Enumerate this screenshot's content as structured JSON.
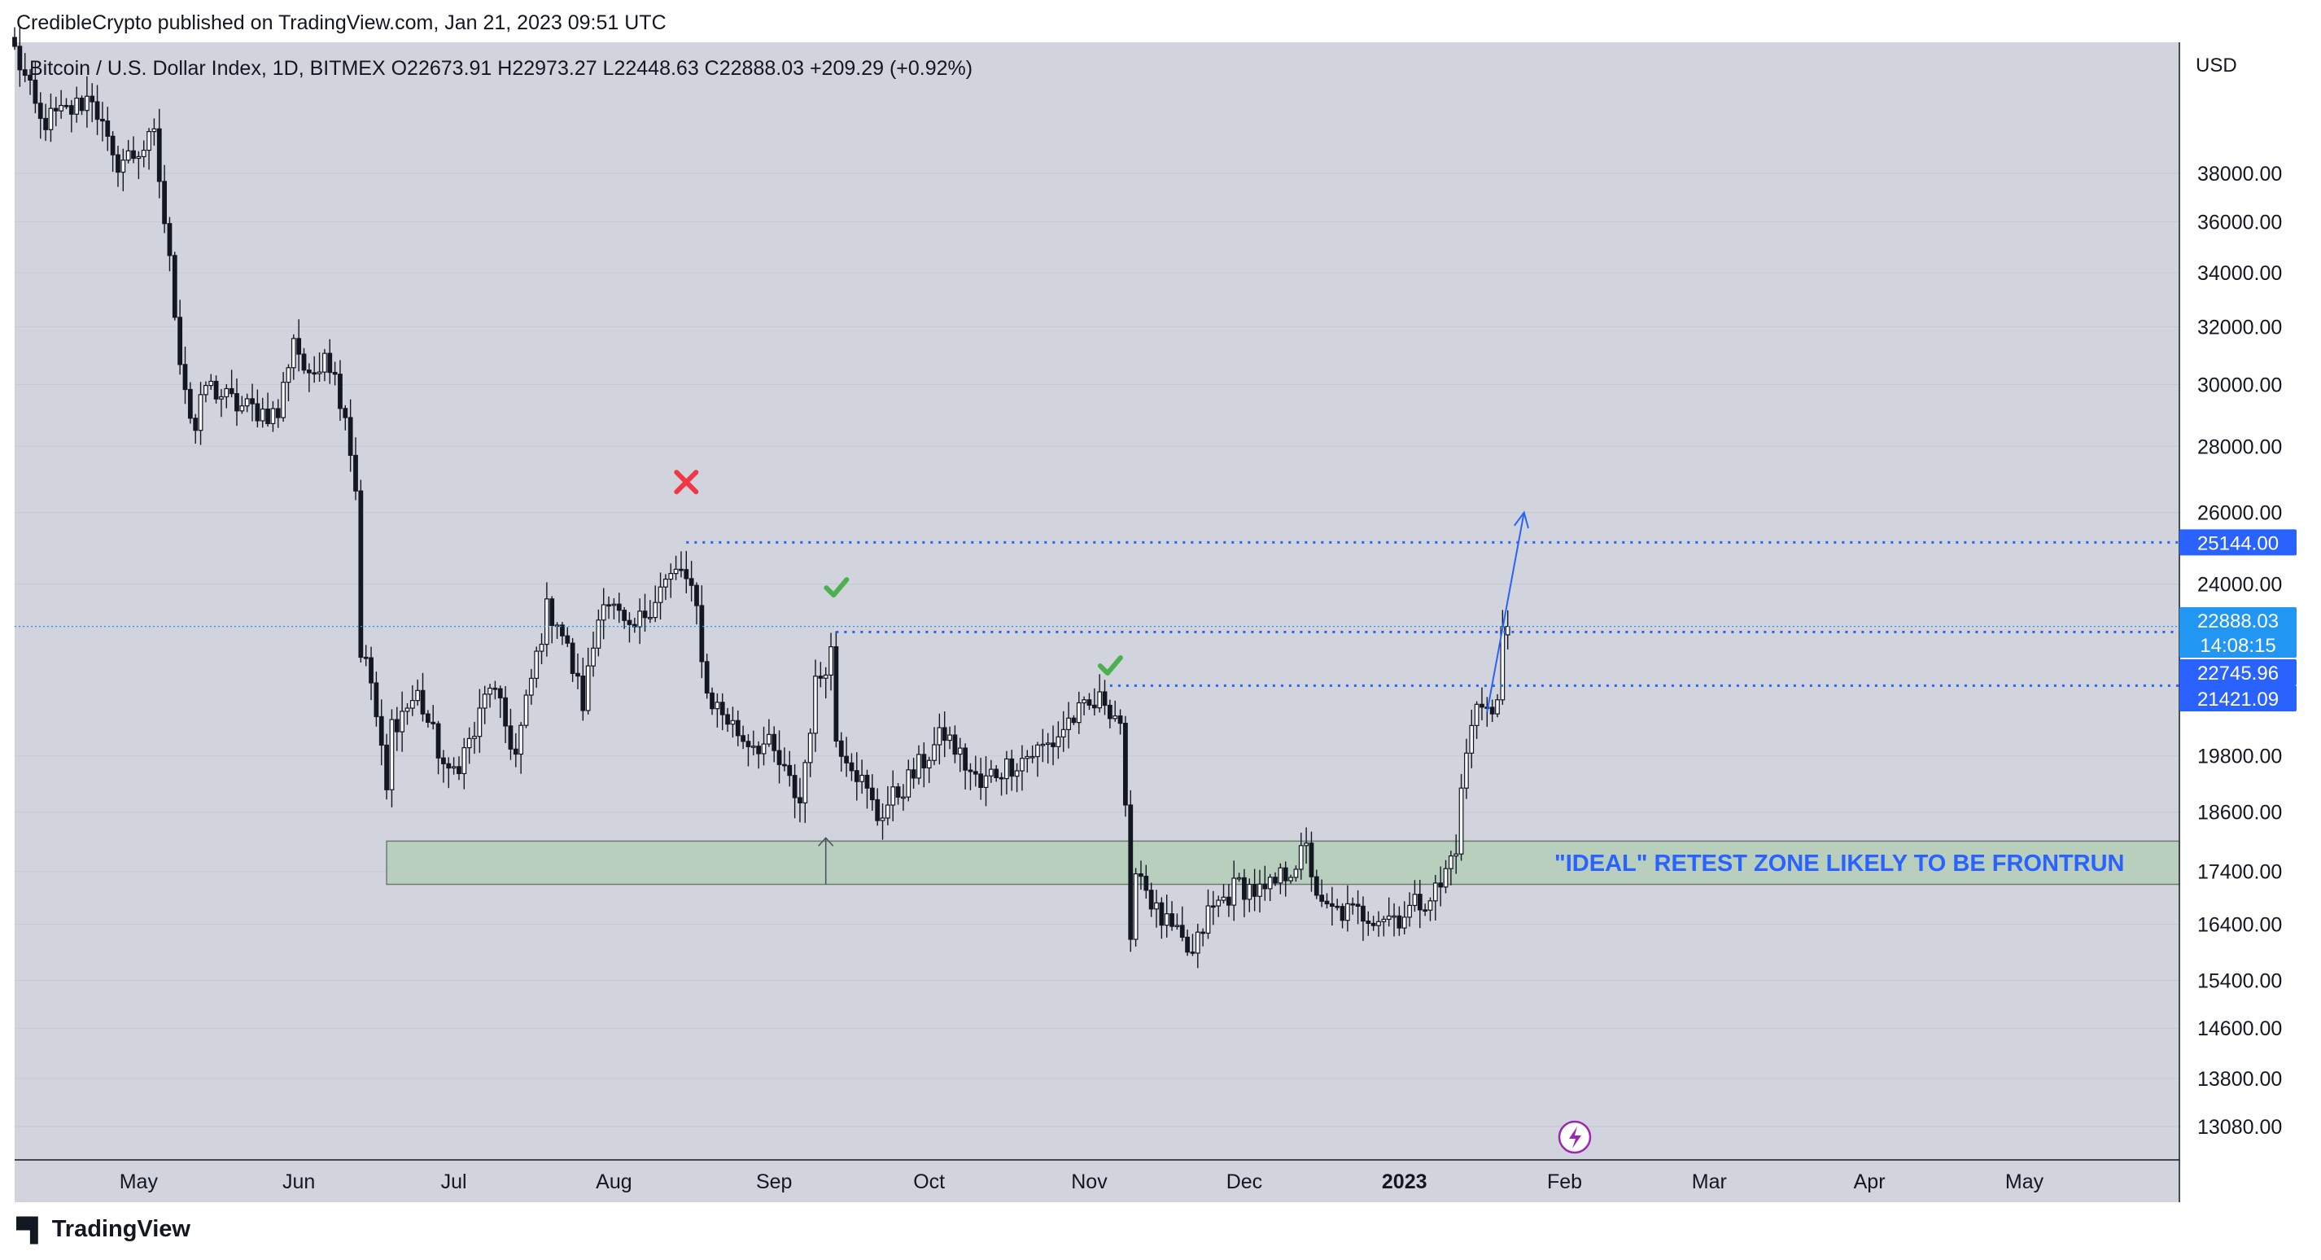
{
  "header": {
    "published_line": "CredibleCrypto published on TradingView.com, Jan 21, 2023 09:51 UTC"
  },
  "footer": {
    "brand": "TradingView"
  },
  "chart_data": {
    "type": "candlestick",
    "symbol_line": {
      "name": "Bitcoin / U.S. Dollar Index, 1D, BITMEX",
      "open_label": "O",
      "open": "22673.91",
      "high_label": "H",
      "high": "22973.27",
      "low_label": "L",
      "low": "22448.63",
      "close_label": "C",
      "close": "22888.03",
      "change": "+209.29 (+0.92%)"
    },
    "currency": "USD",
    "y_scale": "log",
    "ylim": [
      12600,
      44000
    ],
    "y_ticks": [
      "38000.00",
      "36000.00",
      "34000.00",
      "32000.00",
      "30000.00",
      "28000.00",
      "26000.00",
      "24000.00",
      "19800.00",
      "18600.00",
      "17400.00",
      "16400.00",
      "15400.00",
      "14600.00",
      "13800.00",
      "13080.00"
    ],
    "x_ticks": [
      "May",
      "Jun",
      "Jul",
      "Aug",
      "Sep",
      "Oct",
      "Nov",
      "Dec",
      "2023",
      "Feb",
      "Mar",
      "Apr",
      "May"
    ],
    "x_range": [
      "2022-04-07",
      "2023-05-31"
    ],
    "price_labels": [
      {
        "value": "25144.00",
        "sub": "",
        "color": "#2962ff"
      },
      {
        "value": "22888.03",
        "sub": "14:08:15",
        "color": "#2196f3"
      },
      {
        "value": "22745.96",
        "sub": "",
        "color": "#2962ff"
      },
      {
        "value": "21421.09",
        "sub": "",
        "color": "#2962ff"
      }
    ],
    "levels": [
      {
        "value": 25144,
        "from": "2022-08-15"
      },
      {
        "value": 22745.96,
        "from": "2022-09-13"
      },
      {
        "value": 21421.09,
        "from": "2022-11-05"
      }
    ],
    "current_price": 22888.03,
    "zone": {
      "low": 17150,
      "high": 18000,
      "from": "2022-06-18",
      "label": "\"IDEAL\" RETEST ZONE LIKELY TO BE FRONTRUN"
    },
    "markers": [
      {
        "type": "cross",
        "date": "2022-08-15",
        "price": 26900
      },
      {
        "type": "check",
        "date": "2022-09-13",
        "price": 23900
      },
      {
        "type": "check",
        "date": "2022-11-05",
        "price": 21900
      }
    ],
    "projection": {
      "from_date": "2023-01-17",
      "from_price": 20800,
      "to_date": "2023-01-21",
      "to_price": 26000
    },
    "zone_arrow_date": "2022-09-11",
    "anchors": [
      [
        "2022-04-07",
        43600
      ],
      [
        "2022-04-12",
        40200
      ],
      [
        "2022-04-18",
        40800
      ],
      [
        "2022-04-22",
        41500
      ],
      [
        "2022-04-26",
        38400
      ],
      [
        "2022-04-30",
        38800
      ],
      [
        "2022-05-04",
        39500
      ],
      [
        "2022-05-06",
        36000
      ],
      [
        "2022-05-09",
        31000
      ],
      [
        "2022-05-11",
        29000
      ],
      [
        "2022-05-12",
        28500
      ],
      [
        "2022-05-14",
        30000
      ],
      [
        "2022-05-20",
        29300
      ],
      [
        "2022-05-28",
        29000
      ],
      [
        "2022-05-31",
        31700
      ],
      [
        "2022-06-03",
        30000
      ],
      [
        "2022-06-06",
        31300
      ],
      [
        "2022-06-10",
        29100
      ],
      [
        "2022-06-12",
        26700
      ],
      [
        "2022-06-13",
        22300
      ],
      [
        "2022-06-15",
        21500
      ],
      [
        "2022-06-18",
        19000
      ],
      [
        "2022-06-19",
        20500
      ],
      [
        "2022-06-24",
        21200
      ],
      [
        "2022-06-30",
        19300
      ],
      [
        "2022-07-05",
        20300
      ],
      [
        "2022-07-08",
        21500
      ],
      [
        "2022-07-13",
        19800
      ],
      [
        "2022-07-19",
        23300
      ],
      [
        "2022-07-21",
        23100
      ],
      [
        "2022-07-26",
        21000
      ],
      [
        "2022-07-30",
        23800
      ],
      [
        "2022-08-04",
        22600
      ],
      [
        "2022-08-10",
        23900
      ],
      [
        "2022-08-14",
        24400
      ],
      [
        "2022-08-17",
        23300
      ],
      [
        "2022-08-19",
        21200
      ],
      [
        "2022-08-26",
        20200
      ],
      [
        "2022-08-31",
        20000
      ],
      [
        "2022-09-06",
        18800
      ],
      [
        "2022-09-09",
        21400
      ],
      [
        "2022-09-12",
        22300
      ],
      [
        "2022-09-13",
        20200
      ],
      [
        "2022-09-16",
        19700
      ],
      [
        "2022-09-21",
        18500
      ],
      [
        "2022-09-28",
        19400
      ],
      [
        "2022-10-04",
        20300
      ],
      [
        "2022-10-11",
        19100
      ],
      [
        "2022-10-13",
        19400
      ],
      [
        "2022-10-25",
        20100
      ],
      [
        "2022-10-28",
        20600
      ],
      [
        "2022-11-04",
        21100
      ],
      [
        "2022-11-07",
        20600
      ],
      [
        "2022-11-08",
        18500
      ],
      [
        "2022-11-09",
        15900
      ],
      [
        "2022-11-10",
        17600
      ],
      [
        "2022-11-14",
        16600
      ],
      [
        "2022-11-21",
        15800
      ],
      [
        "2022-11-24",
        16600
      ],
      [
        "2022-11-30",
        17150
      ],
      [
        "2022-12-05",
        16950
      ],
      [
        "2022-12-13",
        17800
      ],
      [
        "2022-12-16",
        16650
      ],
      [
        "2022-12-31",
        16550
      ],
      [
        "2023-01-08",
        17100
      ],
      [
        "2023-01-11",
        17950
      ],
      [
        "2023-01-13",
        19900
      ],
      [
        "2023-01-15",
        20900
      ],
      [
        "2023-01-17",
        21150
      ],
      [
        "2023-01-18",
        20700
      ],
      [
        "2023-01-19",
        21050
      ],
      [
        "2023-01-20",
        22700
      ],
      [
        "2023-01-21",
        22888
      ]
    ]
  }
}
